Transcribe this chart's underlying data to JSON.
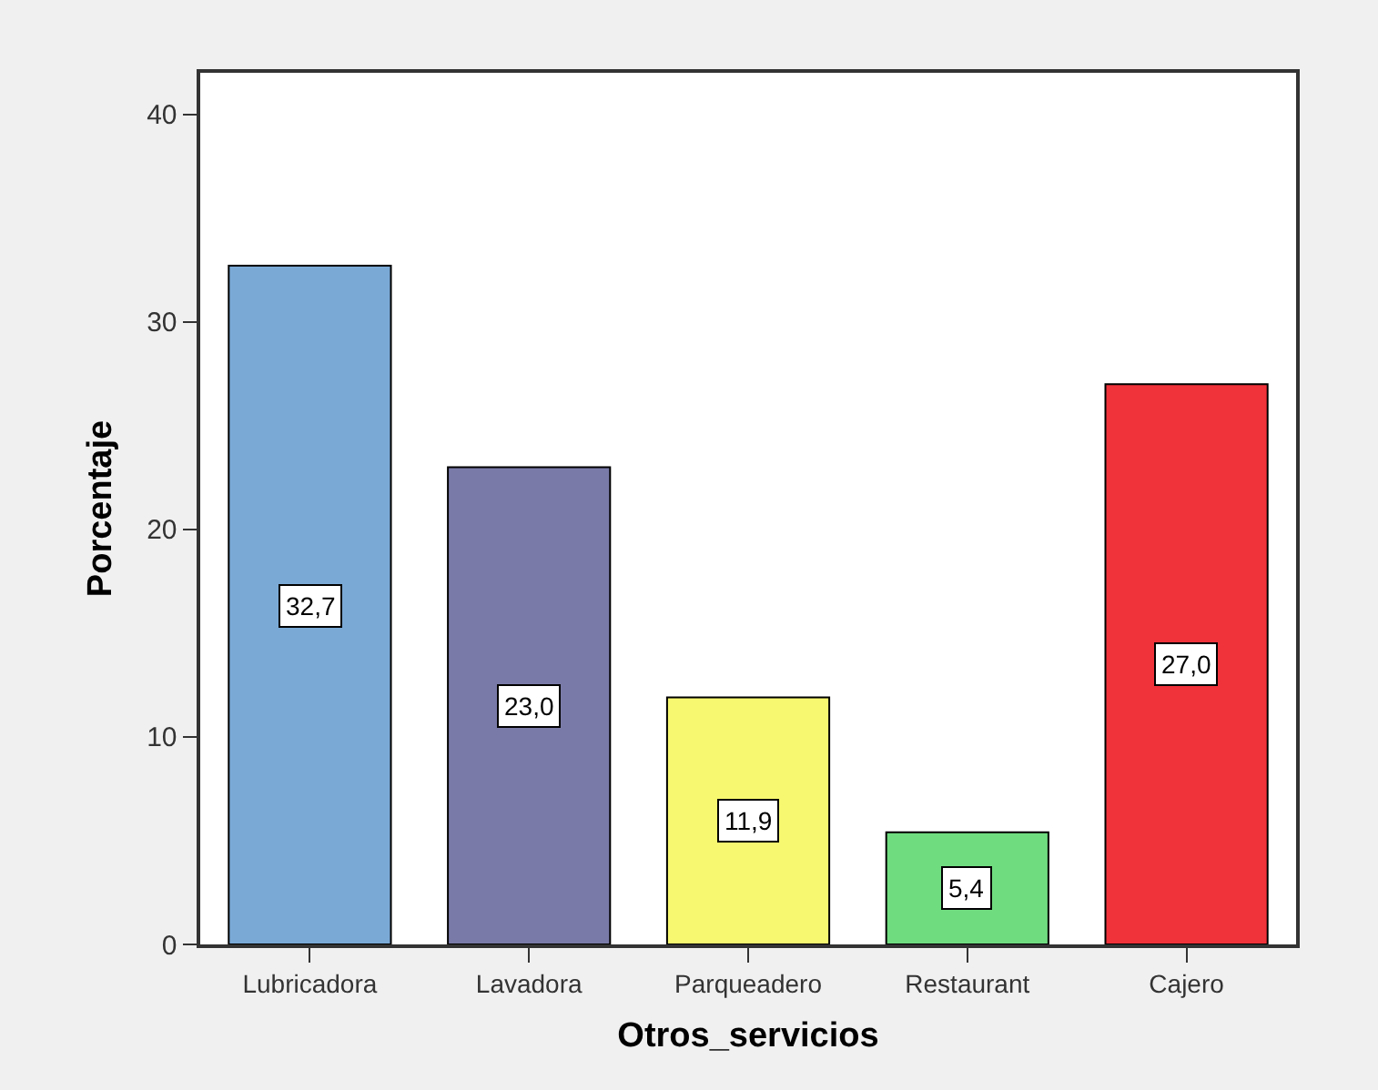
{
  "chart_data": {
    "type": "bar",
    "xlabel": "Otros_servicios",
    "ylabel": "Porcentaje",
    "categories": [
      "Lubricadora",
      "Lavadora",
      "Parqueadero",
      "Restaurant",
      "Cajero"
    ],
    "values": [
      32.7,
      23.0,
      11.9,
      5.4,
      27.0
    ],
    "value_labels": [
      "32,7",
      "23,0",
      "11,9",
      "5,4",
      "27,0"
    ],
    "colors": [
      "#7aa9d6",
      "#7a7aa8",
      "#f8f870",
      "#70dc80",
      "#f0323a"
    ],
    "ylim": [
      0,
      42
    ],
    "yticks": [
      0,
      10,
      20,
      30,
      40
    ]
  }
}
